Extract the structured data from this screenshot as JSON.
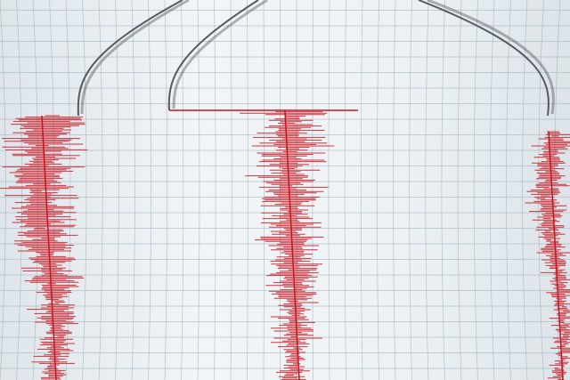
{
  "scene": {
    "subject": "seismograph",
    "colors": {
      "paper": "#eef2f4",
      "grid": "#9fb3c2",
      "trace": "#c8141e",
      "needle": "#555a60"
    },
    "traces": [
      {
        "name": "trace-left"
      },
      {
        "name": "trace-center"
      },
      {
        "name": "trace-right"
      }
    ]
  }
}
